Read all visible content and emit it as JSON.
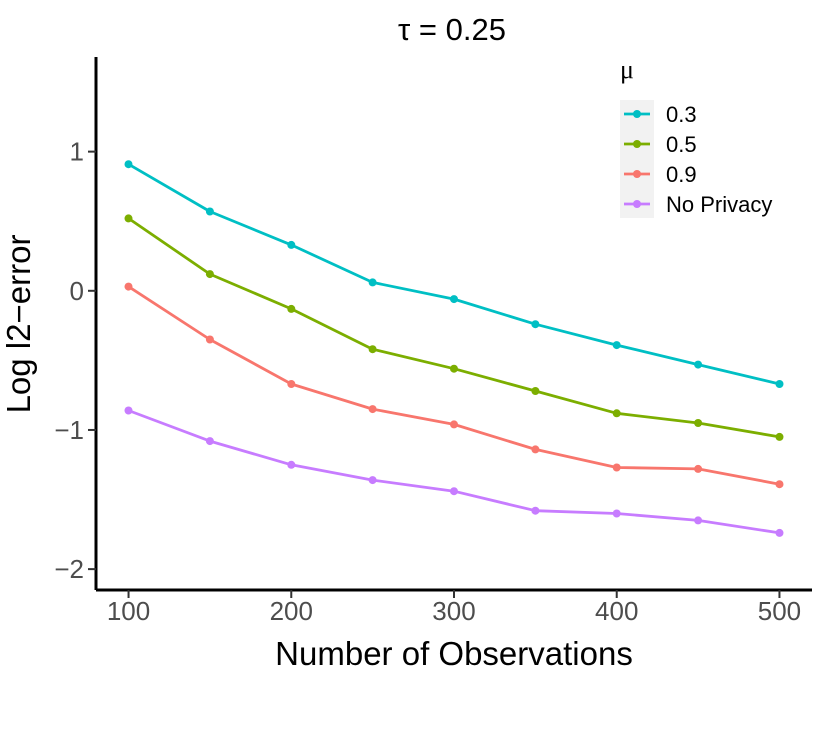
{
  "chart_data": {
    "type": "line",
    "title": "τ = 0.25",
    "xlabel": "Number of Observations",
    "ylabel": "Log l2−error",
    "x": [
      100,
      150,
      200,
      250,
      300,
      350,
      400,
      450,
      500
    ],
    "xticks": [
      100,
      200,
      300,
      400,
      500
    ],
    "yticks": [
      -2,
      -1,
      0,
      1
    ],
    "xtick_labels": [
      "100",
      "200",
      "300",
      "400",
      "500"
    ],
    "ytick_labels": [
      "−2",
      "−1",
      "0",
      "1"
    ],
    "xlim": [
      80,
      520
    ],
    "ylim": [
      -2.15,
      1.68
    ],
    "grid": false,
    "legend": {
      "title": "μ",
      "position": "top-right"
    },
    "series": [
      {
        "name": "0.3",
        "color": "#00BFC4",
        "values": [
          0.91,
          0.57,
          0.33,
          0.06,
          -0.06,
          -0.24,
          -0.39,
          -0.53,
          -0.67
        ]
      },
      {
        "name": "0.5",
        "color": "#7CAE00",
        "values": [
          0.52,
          0.12,
          -0.13,
          -0.42,
          -0.56,
          -0.72,
          -0.88,
          -0.95,
          -1.05
        ]
      },
      {
        "name": "0.9",
        "color": "#F8766D",
        "values": [
          0.03,
          -0.35,
          -0.67,
          -0.85,
          -0.96,
          -1.14,
          -1.27,
          -1.28,
          -1.39
        ]
      },
      {
        "name": "No Privacy",
        "color": "#C77CFF",
        "values": [
          -0.86,
          -1.08,
          -1.25,
          -1.36,
          -1.44,
          -1.58,
          -1.6,
          -1.65,
          -1.74
        ]
      }
    ]
  }
}
